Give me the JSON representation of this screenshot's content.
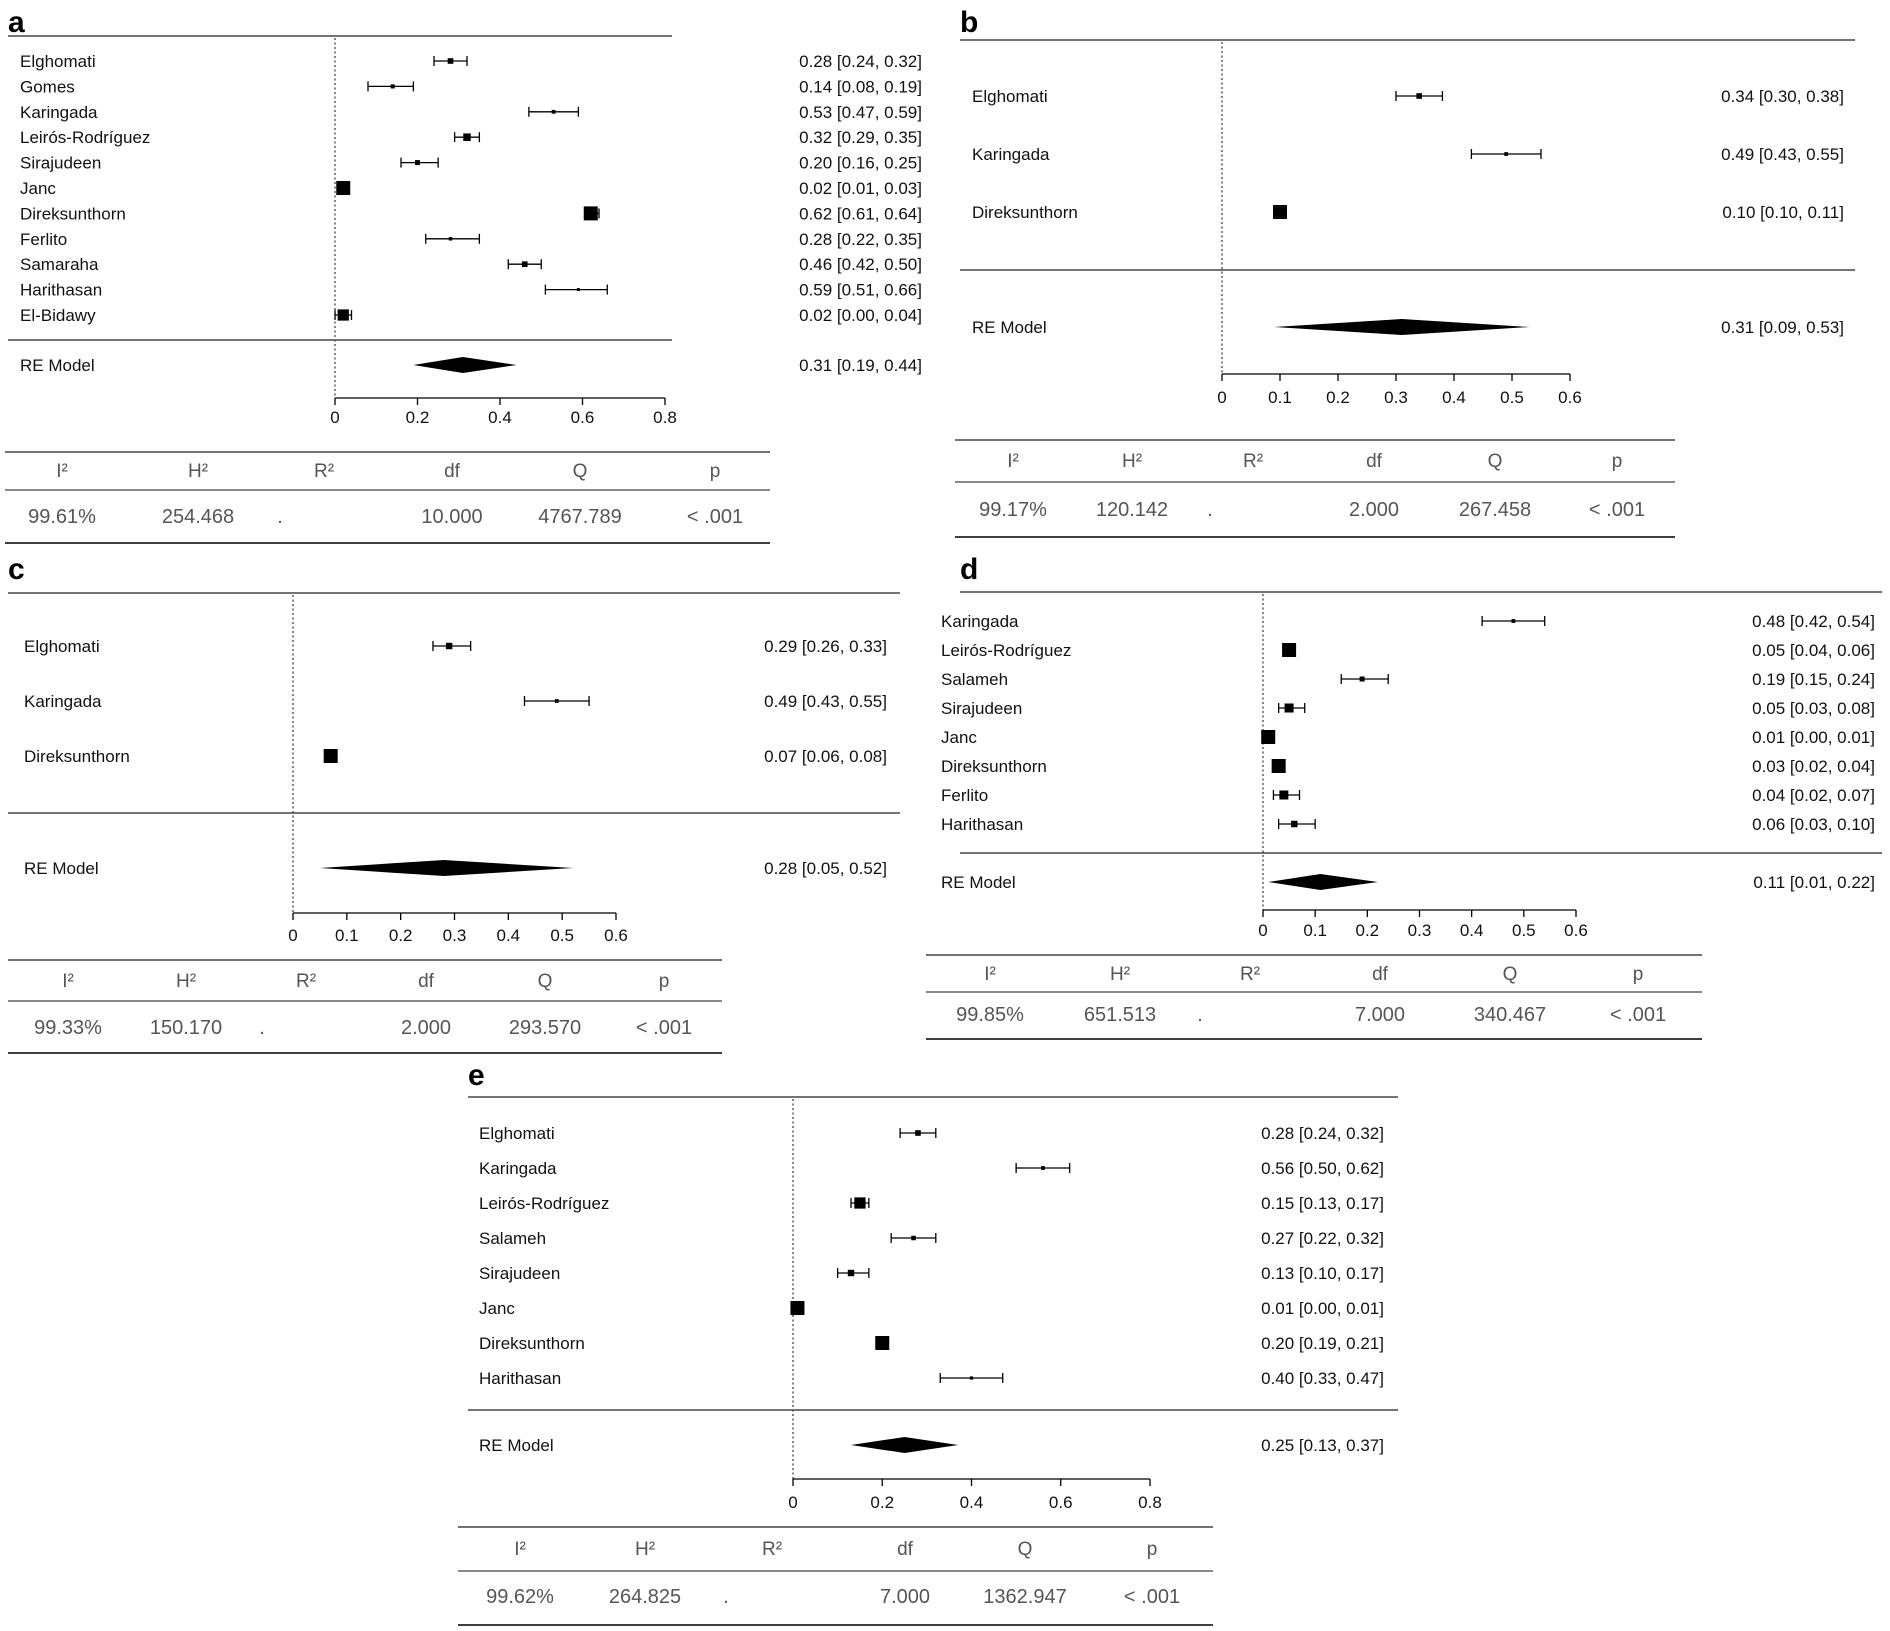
{
  "chart_data": [
    {
      "type": "forest",
      "panel": "a",
      "studies": [
        {
          "label": "Elghomati",
          "est": 0.28,
          "lo": 0.24,
          "hi": 0.32,
          "ci_text": "0.28 [0.24, 0.32]"
        },
        {
          "label": "Gomes",
          "est": 0.14,
          "lo": 0.08,
          "hi": 0.19,
          "ci_text": "0.14 [0.08, 0.19]"
        },
        {
          "label": "Karingada",
          "est": 0.53,
          "lo": 0.47,
          "hi": 0.59,
          "ci_text": "0.53 [0.47, 0.59]"
        },
        {
          "label": "Leirós-Rodríguez",
          "est": 0.32,
          "lo": 0.29,
          "hi": 0.35,
          "ci_text": "0.32 [0.29, 0.35]"
        },
        {
          "label": "Sirajudeen",
          "est": 0.2,
          "lo": 0.16,
          "hi": 0.25,
          "ci_text": "0.20 [0.16, 0.25]"
        },
        {
          "label": "Janc",
          "est": 0.02,
          "lo": 0.01,
          "hi": 0.03,
          "ci_text": "0.02 [0.01, 0.03]"
        },
        {
          "label": "Direksunthorn",
          "est": 0.62,
          "lo": 0.61,
          "hi": 0.64,
          "ci_text": "0.62 [0.61, 0.64]"
        },
        {
          "label": "Ferlito",
          "est": 0.28,
          "lo": 0.22,
          "hi": 0.35,
          "ci_text": "0.28 [0.22, 0.35]"
        },
        {
          "label": "Samaraha",
          "est": 0.46,
          "lo": 0.42,
          "hi": 0.5,
          "ci_text": "0.46 [0.42, 0.50]"
        },
        {
          "label": "Harithasan",
          "est": 0.59,
          "lo": 0.51,
          "hi": 0.66,
          "ci_text": "0.59 [0.51, 0.66]"
        },
        {
          "label": "El-Bidawy",
          "est": 0.02,
          "lo": 0.0,
          "hi": 0.04,
          "ci_text": "0.02 [0.00, 0.04]"
        }
      ],
      "summary": {
        "label": "RE Model",
        "est": 0.31,
        "lo": 0.19,
        "hi": 0.44,
        "ci_text": "0.31 [0.19, 0.44]"
      },
      "xlim": [
        0,
        0.8
      ],
      "ticks": [
        0,
        0.2,
        0.4,
        0.6,
        0.8
      ],
      "tick_labels": [
        "0",
        "0.2",
        "0.4",
        "0.6",
        "0.8"
      ],
      "stats": {
        "headers": [
          "I²",
          "H²",
          "R²",
          "df",
          "Q",
          "p"
        ],
        "values": [
          "99.61%",
          "254.468",
          ".",
          "10.000",
          "4767.789",
          "< .001"
        ]
      }
    },
    {
      "type": "forest",
      "panel": "b",
      "studies": [
        {
          "label": "Elghomati",
          "est": 0.34,
          "lo": 0.3,
          "hi": 0.38,
          "ci_text": "0.34 [0.30, 0.38]"
        },
        {
          "label": "Karingada",
          "est": 0.49,
          "lo": 0.43,
          "hi": 0.55,
          "ci_text": "0.49 [0.43, 0.55]"
        },
        {
          "label": "Direksunthorn",
          "est": 0.1,
          "lo": 0.1,
          "hi": 0.11,
          "ci_text": "0.10 [0.10, 0.11]"
        }
      ],
      "summary": {
        "label": "RE Model",
        "est": 0.31,
        "lo": 0.09,
        "hi": 0.53,
        "ci_text": "0.31 [0.09, 0.53]"
      },
      "xlim": [
        0,
        0.6
      ],
      "ticks": [
        0,
        0.1,
        0.2,
        0.3,
        0.4,
        0.5,
        0.6
      ],
      "tick_labels": [
        "0",
        "0.1",
        "0.2",
        "0.3",
        "0.4",
        "0.5",
        "0.6"
      ],
      "stats": {
        "headers": [
          "I²",
          "H²",
          "R²",
          "df",
          "Q",
          "p"
        ],
        "values": [
          "99.17%",
          "120.142",
          ".",
          "2.000",
          "267.458",
          "< .001"
        ]
      }
    },
    {
      "type": "forest",
      "panel": "c",
      "studies": [
        {
          "label": "Elghomati",
          "est": 0.29,
          "lo": 0.26,
          "hi": 0.33,
          "ci_text": "0.29 [0.26, 0.33]"
        },
        {
          "label": "Karingada",
          "est": 0.49,
          "lo": 0.43,
          "hi": 0.55,
          "ci_text": "0.49 [0.43, 0.55]"
        },
        {
          "label": "Direksunthorn",
          "est": 0.07,
          "lo": 0.06,
          "hi": 0.08,
          "ci_text": "0.07 [0.06, 0.08]"
        }
      ],
      "summary": {
        "label": "RE Model",
        "est": 0.28,
        "lo": 0.05,
        "hi": 0.52,
        "ci_text": "0.28 [0.05, 0.52]"
      },
      "xlim": [
        0,
        0.6
      ],
      "ticks": [
        0,
        0.1,
        0.2,
        0.3,
        0.4,
        0.5,
        0.6
      ],
      "tick_labels": [
        "0",
        "0.1",
        "0.2",
        "0.3",
        "0.4",
        "0.5",
        "0.6"
      ],
      "stats": {
        "headers": [
          "I²",
          "H²",
          "R²",
          "df",
          "Q",
          "p"
        ],
        "values": [
          "99.33%",
          "150.170",
          ".",
          "2.000",
          "293.570",
          "< .001"
        ]
      }
    },
    {
      "type": "forest",
      "panel": "d",
      "studies": [
        {
          "label": "Karingada",
          "est": 0.48,
          "lo": 0.42,
          "hi": 0.54,
          "ci_text": "0.48 [0.42, 0.54]"
        },
        {
          "label": "Leirós-Rodríguez",
          "est": 0.05,
          "lo": 0.04,
          "hi": 0.06,
          "ci_text": "0.05 [0.04, 0.06]"
        },
        {
          "label": "Salameh",
          "est": 0.19,
          "lo": 0.15,
          "hi": 0.24,
          "ci_text": "0.19 [0.15, 0.24]"
        },
        {
          "label": "Sirajudeen",
          "est": 0.05,
          "lo": 0.03,
          "hi": 0.08,
          "ci_text": "0.05 [0.03, 0.08]"
        },
        {
          "label": "Janc",
          "est": 0.01,
          "lo": 0.0,
          "hi": 0.01,
          "ci_text": "0.01 [0.00, 0.01]"
        },
        {
          "label": "Direksunthorn",
          "est": 0.03,
          "lo": 0.02,
          "hi": 0.04,
          "ci_text": "0.03 [0.02, 0.04]"
        },
        {
          "label": "Ferlito",
          "est": 0.04,
          "lo": 0.02,
          "hi": 0.07,
          "ci_text": "0.04 [0.02, 0.07]"
        },
        {
          "label": "Harithasan",
          "est": 0.06,
          "lo": 0.03,
          "hi": 0.1,
          "ci_text": "0.06 [0.03, 0.10]"
        }
      ],
      "summary": {
        "label": "RE Model",
        "est": 0.11,
        "lo": 0.01,
        "hi": 0.22,
        "ci_text": "0.11 [0.01, 0.22]"
      },
      "xlim": [
        0,
        0.6
      ],
      "ticks": [
        0,
        0.1,
        0.2,
        0.3,
        0.4,
        0.5,
        0.6
      ],
      "tick_labels": [
        "0",
        "0.1",
        "0.2",
        "0.3",
        "0.4",
        "0.5",
        "0.6"
      ],
      "stats": {
        "headers": [
          "I²",
          "H²",
          "R²",
          "df",
          "Q",
          "p"
        ],
        "values": [
          "99.85%",
          "651.513",
          ".",
          "7.000",
          "340.467",
          "< .001"
        ]
      }
    },
    {
      "type": "forest",
      "panel": "e",
      "studies": [
        {
          "label": "Elghomati",
          "est": 0.28,
          "lo": 0.24,
          "hi": 0.32,
          "ci_text": "0.28 [0.24, 0.32]"
        },
        {
          "label": "Karingada",
          "est": 0.56,
          "lo": 0.5,
          "hi": 0.62,
          "ci_text": "0.56 [0.50, 0.62]"
        },
        {
          "label": "Leirós-Rodríguez",
          "est": 0.15,
          "lo": 0.13,
          "hi": 0.17,
          "ci_text": "0.15 [0.13, 0.17]"
        },
        {
          "label": "Salameh",
          "est": 0.27,
          "lo": 0.22,
          "hi": 0.32,
          "ci_text": "0.27 [0.22, 0.32]"
        },
        {
          "label": "Sirajudeen",
          "est": 0.13,
          "lo": 0.1,
          "hi": 0.17,
          "ci_text": "0.13 [0.10, 0.17]"
        },
        {
          "label": "Janc",
          "est": 0.01,
          "lo": 0.0,
          "hi": 0.01,
          "ci_text": "0.01 [0.00, 0.01]"
        },
        {
          "label": "Direksunthorn",
          "est": 0.2,
          "lo": 0.19,
          "hi": 0.21,
          "ci_text": "0.20 [0.19, 0.21]"
        },
        {
          "label": "Harithasan",
          "est": 0.4,
          "lo": 0.33,
          "hi": 0.47,
          "ci_text": "0.40 [0.33, 0.47]"
        }
      ],
      "summary": {
        "label": "RE Model",
        "est": 0.25,
        "lo": 0.13,
        "hi": 0.37,
        "ci_text": "0.25 [0.13, 0.37]"
      },
      "xlim": [
        0,
        0.8
      ],
      "ticks": [
        0,
        0.2,
        0.4,
        0.6,
        0.8
      ],
      "tick_labels": [
        "0",
        "0.2",
        "0.4",
        "0.6",
        "0.8"
      ],
      "stats": {
        "headers": [
          "I²",
          "H²",
          "R²",
          "df",
          "Q",
          "p"
        ],
        "values": [
          "99.62%",
          "264.825",
          ".",
          "7.000",
          "1362.947",
          "< .001"
        ]
      }
    }
  ]
}
